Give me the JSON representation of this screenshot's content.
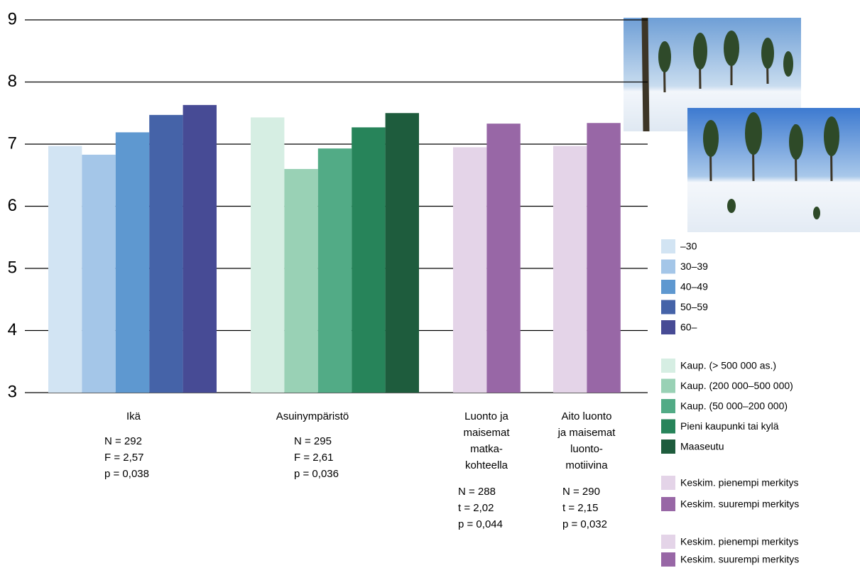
{
  "chart_data": {
    "type": "bar",
    "ylim": [
      3,
      9
    ],
    "yticks": [
      3,
      4,
      5,
      6,
      7,
      8,
      9
    ],
    "grid": true,
    "groups": [
      {
        "label": [
          "Ikä"
        ],
        "stats": [
          "N = 292",
          "F = 2,57",
          "p = 0,038"
        ],
        "series": [
          {
            "name": "–30",
            "color": "#d2e4f3",
            "values": [
              6.97
            ]
          },
          {
            "name": "30–39",
            "color": "#a4c6e8",
            "values": [
              6.83
            ]
          },
          {
            "name": "40–49",
            "color": "#5e98d0",
            "values": [
              7.19
            ]
          },
          {
            "name": "50–59",
            "color": "#4563a8",
            "values": [
              7.47
            ]
          },
          {
            "name": "60–",
            "color": "#474b95",
            "values": [
              7.63
            ]
          }
        ]
      },
      {
        "label": [
          "Asuinympäristö"
        ],
        "stats": [
          "N = 295",
          "F = 2,61",
          "p = 0,036"
        ],
        "series": [
          {
            "name": "Kaup. (> 500 000 as.)",
            "color": "#d6eee3",
            "values": [
              7.43
            ]
          },
          {
            "name": "Kaup. (200 000–500 000)",
            "color": "#99d1b5",
            "values": [
              6.6
            ]
          },
          {
            "name": "Kaup. (50 000–200 000)",
            "color": "#52ab86",
            "values": [
              6.93
            ]
          },
          {
            "name": "Pieni kaupunki tai kylä",
            "color": "#27845a",
            "values": [
              7.27
            ]
          },
          {
            "name": "Maaseutu",
            "color": "#1e5c3d",
            "values": [
              7.5
            ]
          }
        ]
      },
      {
        "label": [
          "Luonto ja",
          "maisemat",
          "matka-",
          "kohteella"
        ],
        "stats": [
          "N = 288",
          "t = 2,02",
          "p = 0,044"
        ],
        "series": [
          {
            "name": "Keskim. pienempi merkitys",
            "color": "#e4d4e8",
            "values": [
              6.95
            ]
          },
          {
            "name": "Keskim. suurempi merkitys",
            "color": "#9867a6",
            "values": [
              7.33
            ]
          }
        ]
      },
      {
        "label": [
          "Aito luonto",
          "ja maisemat",
          "luonto-",
          "motiivina"
        ],
        "stats": [
          "N = 290",
          "t = 2,15",
          "p = 0,032"
        ],
        "series": [
          {
            "name": "Keskim. pienempi merkitys",
            "color": "#e4d4e8",
            "values": [
              6.97
            ]
          },
          {
            "name": "Keskim. suurempi merkitys",
            "color": "#9867a6",
            "values": [
              7.34
            ]
          }
        ]
      }
    ]
  }
}
